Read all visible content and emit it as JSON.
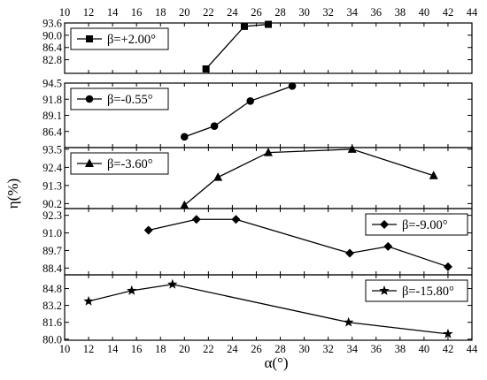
{
  "x_axis": {
    "label": "α(°)",
    "min": 10,
    "max": 44,
    "ticks": [
      "10",
      "12",
      "14",
      "16",
      "18",
      "20",
      "22",
      "24",
      "26",
      "28",
      "30",
      "32",
      "34",
      "36",
      "38",
      "40",
      "42",
      "44"
    ]
  },
  "y_axis": {
    "label": "η(%)"
  },
  "chart_data": [
    {
      "type": "line",
      "series": [
        {
          "name": "β=+2.00°",
          "marker": "square",
          "x": [
            21.8,
            25,
            27
          ],
          "y": [
            80.1,
            92.6,
            93.2
          ]
        }
      ],
      "ylim": [
        78.8,
        93.6
      ],
      "yticks": [
        "82.8",
        "86.4",
        "90.0",
        "93.6"
      ],
      "legend_position": "top-left"
    },
    {
      "type": "line",
      "series": [
        {
          "name": "β=-0.55°",
          "marker": "circle",
          "x": [
            20,
            22.5,
            25.5,
            29
          ],
          "y": [
            85.5,
            87.3,
            91.5,
            94.0
          ]
        }
      ],
      "ylim": [
        83.7,
        94.5
      ],
      "yticks": [
        "86.4",
        "89.1",
        "91.8",
        "94.5"
      ],
      "legend_position": "top-left"
    },
    {
      "type": "line",
      "series": [
        {
          "name": "β=-3.60°",
          "marker": "triangle",
          "x": [
            20,
            22.8,
            27,
            34,
            40.8
          ],
          "y": [
            90.1,
            91.8,
            93.3,
            93.5,
            91.9
          ]
        }
      ],
      "ylim": [
        89.9,
        93.6
      ],
      "yticks": [
        "90.2",
        "91.3",
        "92.4",
        "93.5"
      ],
      "legend_position": "top-left"
    },
    {
      "type": "line",
      "series": [
        {
          "name": "β=-9.00°",
          "marker": "diamond",
          "x": [
            17,
            21,
            24.3,
            33.8,
            37,
            42
          ],
          "y": [
            91.2,
            92.0,
            92.0,
            89.5,
            90.0,
            88.5
          ]
        }
      ],
      "ylim": [
        87.9,
        92.8
      ],
      "yticks": [
        "88.4",
        "89.7",
        "91.0",
        "92.3"
      ],
      "legend_position": "top-right"
    },
    {
      "type": "line",
      "series": [
        {
          "name": "β=-15.80°",
          "marker": "star",
          "x": [
            12,
            15.6,
            19,
            33.7,
            42
          ],
          "y": [
            83.6,
            84.6,
            85.2,
            81.6,
            80.5
          ]
        }
      ],
      "ylim": [
        79.9,
        86.1
      ],
      "yticks": [
        "80.0",
        "81.6",
        "83.2",
        "84.8"
      ],
      "legend_position": "top-right"
    }
  ]
}
